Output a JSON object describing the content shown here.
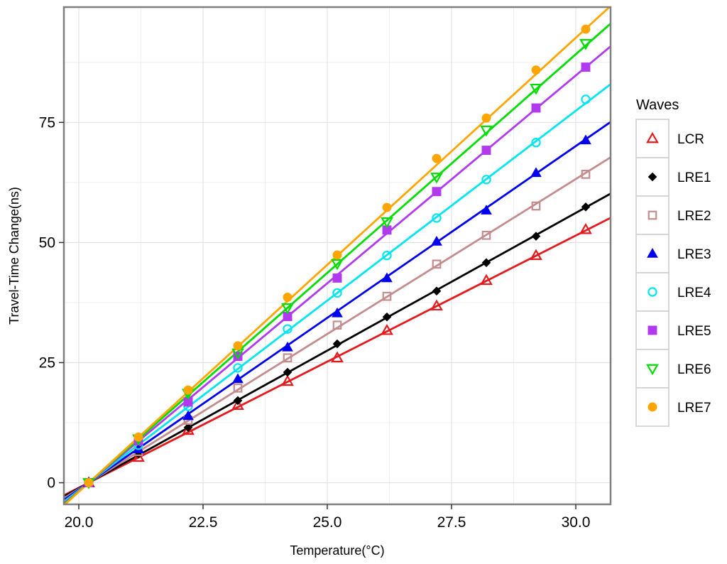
{
  "chart_data": {
    "type": "line",
    "title": "",
    "xlabel": "Temperature(°C)",
    "ylabel": "Travel-Time Change(ns)",
    "xlim": [
      19.7,
      30.7
    ],
    "ylim": [
      -4.5,
      99
    ],
    "xticks": [
      20.0,
      22.5,
      25.0,
      27.5,
      30.0
    ],
    "xtick_labels": [
      "20.0",
      "22.5",
      "25.0",
      "27.5",
      "30.0"
    ],
    "yticks": [
      0,
      25,
      50,
      75
    ],
    "ytick_labels": [
      "0",
      "25",
      "50",
      "75"
    ],
    "grid": true,
    "legend_title": "Waves",
    "legend_position": "right",
    "x": [
      20.2,
      21.2,
      22.2,
      23.2,
      24.2,
      25.2,
      26.2,
      27.2,
      28.2,
      29.2,
      30.2
    ],
    "series": [
      {
        "name": "LCR",
        "color": "#e41a1c",
        "marker": "triangle-open",
        "values": [
          0,
          5.3,
          10.9,
          16.1,
          21.1,
          26.0,
          31.7,
          36.8,
          42.1,
          47.3,
          52.7
        ],
        "fit_slope": 5.25
      },
      {
        "name": "LRE1",
        "color": "#000000",
        "marker": "diamond",
        "values": [
          0,
          6.0,
          11.5,
          17.1,
          23.0,
          28.9,
          34.5,
          39.9,
          45.8,
          51.3,
          57.4
        ],
        "fit_slope": 5.73
      },
      {
        "name": "LRE2",
        "color": "#c48c8c",
        "marker": "square-open",
        "values": [
          0,
          6.5,
          13.0,
          19.7,
          26.0,
          32.8,
          38.8,
          45.5,
          51.5,
          57.6,
          64.2
        ],
        "fit_slope": 6.45
      },
      {
        "name": "LRE3",
        "color": "#0000ee",
        "marker": "triangle",
        "values": [
          0,
          7.0,
          13.9,
          21.6,
          28.2,
          35.3,
          42.6,
          50.2,
          56.7,
          64.5,
          71.3
        ],
        "fit_slope": 7.15
      },
      {
        "name": "LRE4",
        "color": "#00e5ee",
        "marker": "circle-open",
        "values": [
          0,
          7.8,
          15.9,
          23.9,
          32.0,
          39.5,
          47.3,
          55.1,
          63.1,
          70.8,
          79.8
        ],
        "fit_slope": 7.9
      },
      {
        "name": "LRE5",
        "color": "#b23aee",
        "marker": "square",
        "values": [
          0,
          8.7,
          16.8,
          26.3,
          34.6,
          42.6,
          52.6,
          60.6,
          69.2,
          78.0,
          86.5
        ],
        "fit_slope": 8.65
      },
      {
        "name": "LRE6",
        "color": "#00dd00",
        "marker": "triangle-down-open",
        "values": [
          0,
          9.1,
          18.6,
          27.0,
          36.4,
          45.6,
          54.3,
          63.6,
          73.4,
          82.1,
          91.4
        ],
        "fit_slope": 9.1
      },
      {
        "name": "LRE7",
        "color": "#ffa500",
        "marker": "circle",
        "values": [
          0,
          9.5,
          19.3,
          28.5,
          38.6,
          47.4,
          57.3,
          67.5,
          75.9,
          85.9,
          94.4
        ],
        "fit_slope": 9.45
      }
    ]
  }
}
